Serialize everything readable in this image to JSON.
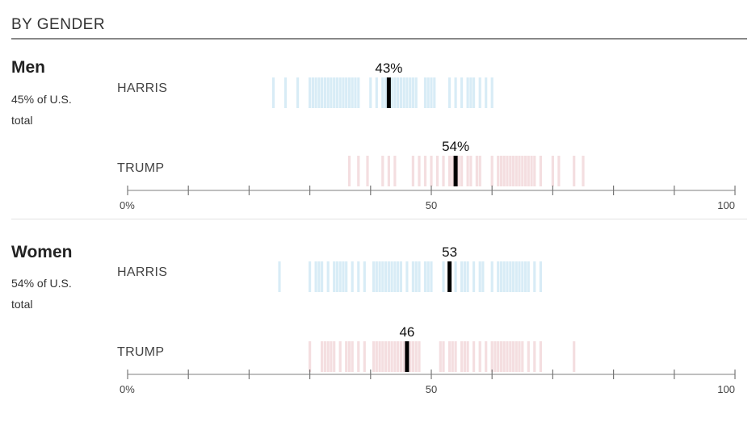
{
  "section_title": "BY GENDER",
  "colors": {
    "harris": "#8ec9e6",
    "trump": "#e0a0a6",
    "marker": "#000000",
    "axis": "#999999"
  },
  "chart_data": [
    {
      "type": "strip",
      "group": "Men",
      "subtitle": "45% of U.S. total",
      "xlim": [
        0,
        100
      ],
      "ticks": [
        0,
        10,
        20,
        30,
        40,
        50,
        60,
        70,
        80,
        90,
        100
      ],
      "tick_labels": [
        {
          "value": 0,
          "label": "0%"
        },
        {
          "value": 50,
          "label": "50"
        },
        {
          "value": 100,
          "label": "100"
        }
      ],
      "series": [
        {
          "name": "HARRIS",
          "party": "harris",
          "value": 43,
          "value_label": "43%",
          "polls": [
            24,
            26,
            28,
            30,
            30.5,
            31,
            31.5,
            32,
            32.5,
            33,
            33.5,
            34,
            34.5,
            35,
            35.5,
            36,
            36.5,
            37,
            37.5,
            38,
            40,
            41,
            42,
            42.5,
            43.5,
            44,
            44.5,
            45,
            45.5,
            46,
            46.5,
            47,
            47.5,
            49,
            49.5,
            50,
            50.5,
            53,
            54,
            55,
            56,
            56.5,
            57,
            58,
            59,
            60
          ]
        },
        {
          "name": "TRUMP",
          "party": "trump",
          "value": 54,
          "value_label": "54%",
          "polls": [
            36.5,
            38,
            39.5,
            42,
            43,
            44,
            47,
            48,
            49,
            50,
            51,
            52,
            53,
            53.5,
            54.5,
            55,
            56,
            56.5,
            57.5,
            58,
            60,
            61,
            61.5,
            62,
            62.5,
            63,
            63.5,
            64,
            64.5,
            65,
            65.5,
            66,
            66.5,
            67,
            68,
            70,
            71,
            73.5,
            75
          ]
        }
      ]
    },
    {
      "type": "strip",
      "group": "Women",
      "subtitle": "54% of U.S. total",
      "xlim": [
        0,
        100
      ],
      "ticks": [
        0,
        10,
        20,
        30,
        40,
        50,
        60,
        70,
        80,
        90,
        100
      ],
      "tick_labels": [
        {
          "value": 0,
          "label": "0%"
        },
        {
          "value": 50,
          "label": "50"
        },
        {
          "value": 100,
          "label": "100"
        }
      ],
      "series": [
        {
          "name": "HARRIS",
          "party": "harris",
          "value": 53,
          "value_label": "53",
          "polls": [
            25,
            30,
            31,
            31.5,
            32,
            33,
            34,
            34.5,
            35,
            35.5,
            36,
            37,
            38,
            39,
            40.5,
            41,
            41.5,
            42,
            42.5,
            43,
            43.5,
            44,
            44.5,
            45,
            46,
            47,
            47.5,
            48,
            49,
            49.5,
            50,
            52,
            54,
            55,
            55.5,
            56,
            57,
            58,
            58.5,
            60,
            61,
            61.5,
            62,
            62.5,
            63,
            63.5,
            64,
            64.5,
            65,
            65.5,
            66,
            67,
            68
          ]
        },
        {
          "name": "TRUMP",
          "party": "trump",
          "value": 46,
          "value_label": "46",
          "polls": [
            30,
            32,
            32.5,
            33,
            33.5,
            34,
            35,
            36,
            36.5,
            37,
            38,
            39,
            40.5,
            41,
            41.5,
            42,
            42.5,
            43,
            43.5,
            44,
            44.5,
            45,
            45.5,
            46.5,
            47,
            47.5,
            48,
            51.5,
            52,
            53,
            53.5,
            54,
            55,
            55.5,
            56,
            57,
            58,
            59,
            60,
            60.5,
            61,
            61.5,
            62,
            62.5,
            63,
            63.5,
            64,
            64.5,
            65,
            66,
            67,
            68,
            73.5
          ]
        }
      ]
    }
  ]
}
